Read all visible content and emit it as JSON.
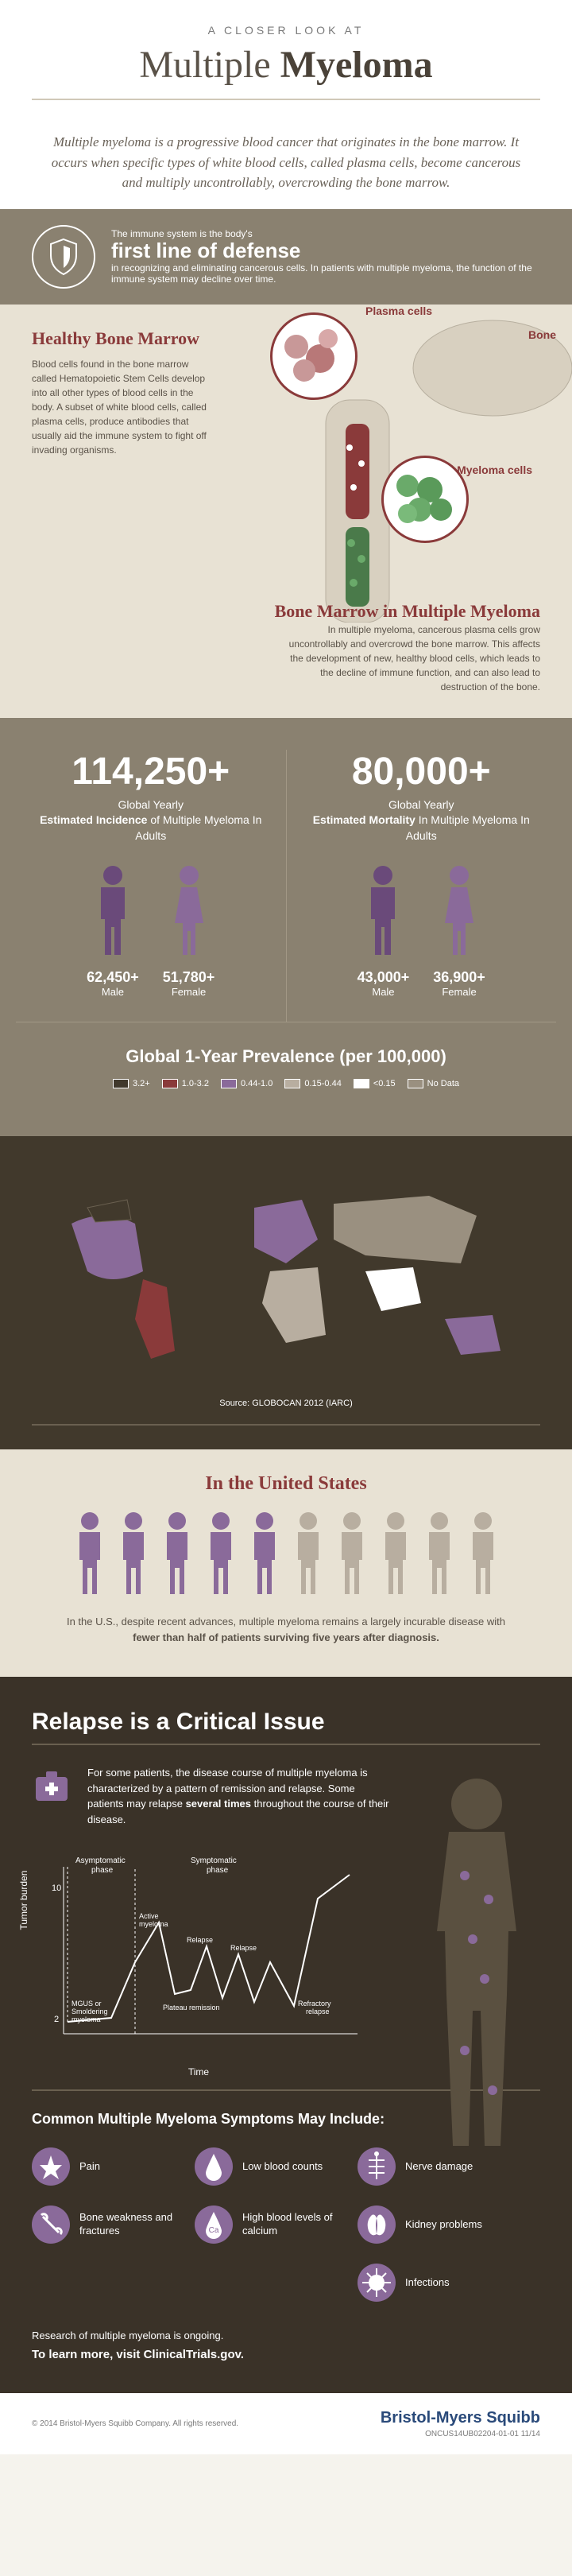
{
  "header": {
    "subtitle": "A CLOSER LOOK AT",
    "title_part1": "Multiple",
    "title_part2": "Myeloma"
  },
  "intro": "Multiple myeloma is a progressive blood cancer that originates in the bone marrow. It occurs when specific types of white blood cells, called plasma cells, become cancerous and multiply uncontrollably, overcrowding the bone marrow.",
  "defense": {
    "line1": "The immune system is the body's",
    "line2": "first line of defense",
    "line3": "in recognizing and eliminating cancerous cells. In patients with multiple myeloma, the function of the immune system may decline over time."
  },
  "bone": {
    "healthy_title": "Healthy Bone Marrow",
    "healthy_text": "Blood cells found in the bone marrow called Hematopoietic Stem Cells develop into all other types of blood cells in the body. A subset of white blood cells, called plasma cells, produce antibodies that usually aid the immune system to fight off invading organisms.",
    "labels": {
      "plasma": "Plasma cells",
      "bone": "Bone",
      "myeloma": "Myeloma cells"
    },
    "mm_title": "Bone Marrow in Multiple Myeloma",
    "mm_text": "In multiple myeloma, cancerous plasma cells grow uncontrollably and overcrowd the bone marrow. This affects the development of new, healthy blood cells, which leads to the decline of immune function, and can also lead to destruction of the bone."
  },
  "stats": {
    "incidence": {
      "number": "114,250+",
      "line1": "Global Yearly",
      "line2": "Estimated Incidence",
      "line3": " of Multiple Myeloma In Adults",
      "male_num": "62,450+",
      "male_label": "Male",
      "female_num": "51,780+",
      "female_label": "Female"
    },
    "mortality": {
      "number": "80,000+",
      "line1": "Global Yearly",
      "line2": "Estimated Mortality",
      "line3": " In Multiple Myeloma In Adults",
      "male_num": "43,000+",
      "male_label": "Male",
      "female_num": "36,900+",
      "female_label": "Female"
    },
    "prevalence_title": "Global 1-Year Prevalence (per 100,000)",
    "legend": [
      {
        "label": "3.2+",
        "color": "#41392c"
      },
      {
        "label": "1.0-3.2",
        "color": "#8a3a3a"
      },
      {
        "label": "0.44-1.0",
        "color": "#8a6a9a"
      },
      {
        "label": "0.15-0.44",
        "color": "#b8aea0"
      },
      {
        "label": "<0.15",
        "color": "#ffffff"
      },
      {
        "label": "No Data",
        "color": "#9a9080"
      }
    ],
    "map_source": "Source: GLOBOCAN 2012 (IARC)"
  },
  "us": {
    "title": "In the United States",
    "text_pre": "In the U.S., despite recent advances, multiple myeloma remains a largely incurable disease with ",
    "text_bold": "fewer than half of patients surviving five years after diagnosis.",
    "people_colors": [
      "#8a6a9a",
      "#8a6a9a",
      "#8a6a9a",
      "#8a6a9a",
      "#8a6a9a",
      "#b8aea0",
      "#b8aea0",
      "#b8aea0",
      "#b8aea0",
      "#b8aea0"
    ]
  },
  "relapse": {
    "title": "Relapse is a Critical Issue",
    "intro_pre": "For some patients, the disease course of multiple myeloma is characterized by a pattern of remission and relapse. Some patients may relapse ",
    "intro_bold": "several times",
    "intro_post": " throughout the course of their disease.",
    "chart": {
      "ylabel": "Tumor burden",
      "xlabel": "Time",
      "yticks": [
        "2",
        "10"
      ],
      "annotations": [
        "Asymptomatic phase",
        "Symptomatic phase",
        "MGUS or Smoldering myeloma",
        "Active myeloma",
        "Relapse",
        "Relapse",
        "Plateau remission",
        "Refractory relapse"
      ],
      "line_color": "#ffffff",
      "axis_color": "#ffffff"
    },
    "symptoms_title": "Common Multiple Myeloma Symptoms May Include:",
    "symptoms": [
      {
        "icon": "pain",
        "label": "Pain"
      },
      {
        "icon": "blood-drop",
        "label": "Low blood counts"
      },
      {
        "icon": "nerve",
        "label": "Nerve damage"
      },
      {
        "icon": "bone",
        "label": "Bone weakness and fractures"
      },
      {
        "icon": "calcium",
        "label": "High blood levels of calcium"
      },
      {
        "icon": "kidney",
        "label": "Kidney problems"
      },
      {
        "icon": "",
        "label": ""
      },
      {
        "icon": "",
        "label": ""
      },
      {
        "icon": "infection",
        "label": "Infections"
      }
    ],
    "research": "Research of multiple myeloma is ongoing.",
    "learn_more": "To learn more, visit ClinicalTrials.gov."
  },
  "footer": {
    "copyright": "© 2014 Bristol-Myers Squibb Company. All rights reserved.",
    "company": "Bristol-Myers Squibb",
    "code": "ONCUS14UB02204-01-01 11/14"
  },
  "colors": {
    "accent_purple": "#8a6a9a",
    "accent_maroon": "#8a3a3a",
    "male_icon": "#6a4a7a",
    "female_icon": "#8a6a9a"
  }
}
